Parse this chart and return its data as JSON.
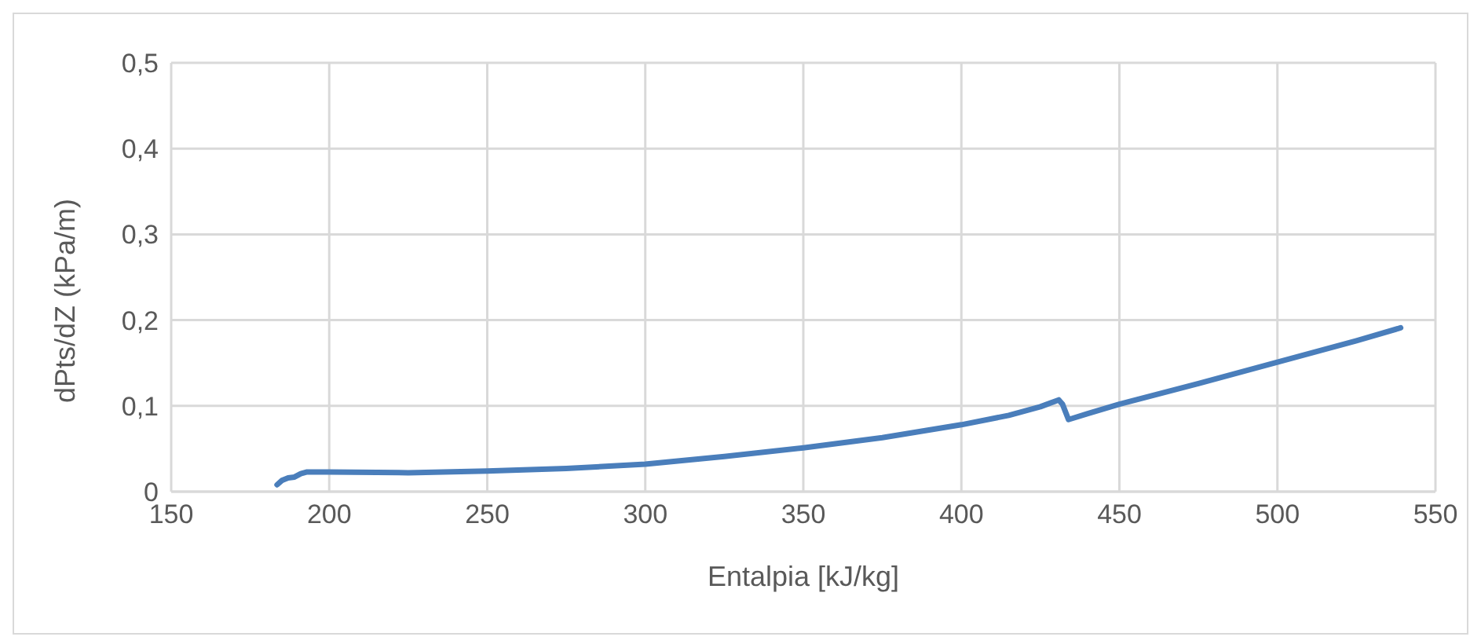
{
  "chart_data": {
    "type": "line",
    "xlabel": "Entalpia [kJ/kg]",
    "ylabel": "dPts/dZ (kPa/m)",
    "series": [
      {
        "color": "#4a7ebb",
        "x": [
          183.5,
          185,
          187,
          189,
          191,
          193,
          200,
          225,
          250,
          275,
          300,
          325,
          350,
          375,
          400,
          415,
          425,
          430.8,
          432,
          433.9,
          440,
          450,
          475,
          500,
          525,
          539
        ],
        "values": [
          0.008,
          0.013,
          0.016,
          0.017,
          0.021,
          0.023,
          0.023,
          0.022,
          0.024,
          0.027,
          0.032,
          0.041,
          0.051,
          0.063,
          0.078,
          0.089,
          0.099,
          0.107,
          0.102,
          0.084,
          0.091,
          0.102,
          0.126,
          0.151,
          0.176,
          0.191
        ]
      }
    ],
    "xlim": [
      150,
      550
    ],
    "xticks": [
      150,
      200,
      250,
      300,
      350,
      400,
      450,
      500,
      550
    ],
    "ylim": [
      0,
      0.5
    ],
    "yticks": [
      {
        "value": 0,
        "label": "0"
      },
      {
        "value": 0.1,
        "label": "0,1"
      },
      {
        "value": 0.2,
        "label": "0,2"
      },
      {
        "value": 0.3,
        "label": "0,3"
      },
      {
        "value": 0.4,
        "label": "0,4"
      },
      {
        "value": 0.5,
        "label": "0,5"
      }
    ],
    "grid": true,
    "legend": false,
    "marker": "none",
    "line_style": "solid"
  }
}
